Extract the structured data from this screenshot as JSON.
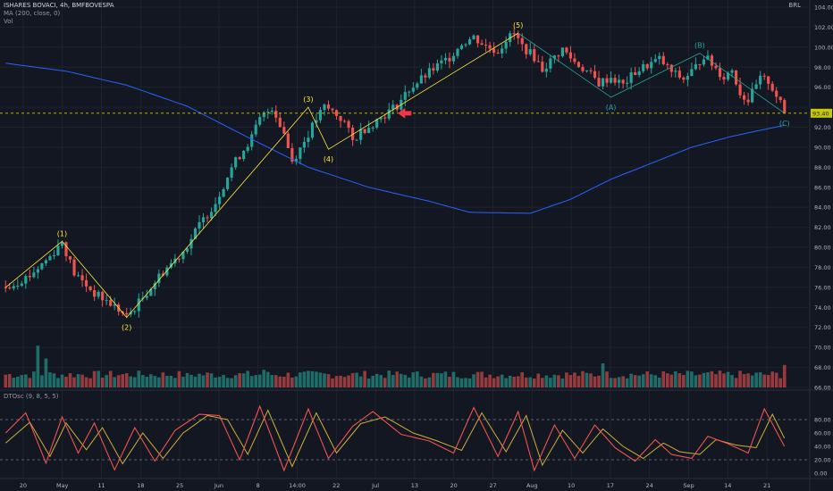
{
  "header": {
    "symbol_line": "ISHARES BOVACI, 4h, BMFBOVESPA",
    "ma_line": "MA (200, close, 0)",
    "vol_line": "Vol",
    "osc_line": "DTOsc (9, 8, 5, 5)",
    "currency": "BRL"
  },
  "colors": {
    "background": "#131722",
    "grid": "#1e222d",
    "up": "#26a69a",
    "down": "#ef5350",
    "ma": "#2962ff",
    "wave": "#ffeb3b",
    "corrective": "#26a69a",
    "osc_fast": "#ef5350",
    "osc_slow": "#c9b03a",
    "arrow": "#f23645",
    "price_line": "#c8c800"
  },
  "chart_data": {
    "type": "candlestick",
    "title": "ISHARES BOVACI, 4h, BMFBOVESPA",
    "currency": "BRL",
    "current_price": 93.4,
    "price_axis": {
      "ylim": [
        66,
        104
      ],
      "ticks": [
        "66.00",
        "68.00",
        "70.00",
        "72.00",
        "74.00",
        "76.00",
        "78.00",
        "80.00",
        "82.00",
        "84.00",
        "86.00",
        "88.00",
        "90.00",
        "92.00",
        "94.00",
        "96.00",
        "98.00",
        "100.00",
        "102.00",
        "104.00"
      ]
    },
    "x_ticks": [
      "20",
      "May",
      "11",
      "18",
      "25",
      "Jun",
      "8",
      "14:00",
      "22",
      "Jul",
      "13",
      "20",
      "27",
      "Aug",
      "10",
      "17",
      "24",
      "Sep",
      "14",
      "21"
    ],
    "price_path": [
      [
        0,
        76.0
      ],
      [
        6,
        77.2
      ],
      [
        11,
        79.1
      ],
      [
        14,
        80.6
      ],
      [
        17,
        77.4
      ],
      [
        22,
        75.4
      ],
      [
        27,
        74.1
      ],
      [
        30,
        73.0
      ],
      [
        34,
        75.0
      ],
      [
        39,
        77.6
      ],
      [
        44,
        79.6
      ],
      [
        48,
        82.2
      ],
      [
        52,
        84.5
      ],
      [
        56,
        88.0
      ],
      [
        58,
        89.2
      ],
      [
        61,
        91.0
      ],
      [
        63,
        92.8
      ],
      [
        66,
        94.0
      ],
      [
        67,
        93.2
      ],
      [
        69,
        91.4
      ],
      [
        71,
        88.6
      ],
      [
        74,
        90.6
      ],
      [
        77,
        92.8
      ],
      [
        79,
        94.0
      ],
      [
        81,
        93.6
      ],
      [
        84,
        92.5
      ],
      [
        86,
        90.6
      ],
      [
        88,
        91.6
      ],
      [
        91,
        92.4
      ],
      [
        94,
        93.3
      ],
      [
        97,
        94.2
      ],
      [
        100,
        95.8
      ],
      [
        103,
        96.8
      ],
      [
        106,
        97.8
      ],
      [
        110,
        99.0
      ],
      [
        113,
        100.4
      ],
      [
        116,
        101.0
      ],
      [
        119,
        100.1
      ],
      [
        122,
        99.6
      ],
      [
        124,
        100.8
      ],
      [
        126,
        101.3
      ],
      [
        128,
        100.1
      ],
      [
        131,
        99.0
      ],
      [
        133,
        97.8
      ],
      [
        136,
        99.0
      ],
      [
        138,
        99.8
      ],
      [
        141,
        98.5
      ],
      [
        144,
        97.6
      ],
      [
        147,
        96.4
      ],
      [
        150,
        97.0
      ],
      [
        153,
        96.2
      ],
      [
        156,
        97.5
      ],
      [
        159,
        98.2
      ],
      [
        162,
        98.8
      ],
      [
        165,
        97.5
      ],
      [
        168,
        96.8
      ],
      [
        171,
        98.0
      ],
      [
        173,
        99.2
      ],
      [
        175,
        98.3
      ],
      [
        178,
        97.0
      ],
      [
        180,
        97.8
      ],
      [
        182,
        95.4
      ],
      [
        184,
        94.7
      ],
      [
        187,
        96.8
      ],
      [
        189,
        96.6
      ],
      [
        191,
        95.2
      ],
      [
        193,
        93.4
      ]
    ],
    "ma200": [
      [
        0,
        98.4
      ],
      [
        15,
        97.6
      ],
      [
        30,
        96.2
      ],
      [
        45,
        94.1
      ],
      [
        60,
        91.0
      ],
      [
        75,
        88.0
      ],
      [
        90,
        86.0
      ],
      [
        105,
        84.6
      ],
      [
        115,
        83.5
      ],
      [
        130,
        83.4
      ],
      [
        140,
        84.8
      ],
      [
        150,
        86.8
      ],
      [
        160,
        88.4
      ],
      [
        170,
        90.0
      ],
      [
        180,
        91.1
      ],
      [
        193,
        92.2
      ]
    ],
    "elliott_waves": [
      {
        "label": "(1)",
        "i": 14,
        "price": 80.6
      },
      {
        "label": "(2)",
        "i": 30,
        "price": 73.0
      },
      {
        "label": "(3)",
        "i": 75,
        "price": 94.0
      },
      {
        "label": "(4)",
        "i": 80,
        "price": 89.8
      },
      {
        "label": "(5)",
        "i": 127,
        "price": 101.4
      }
    ],
    "wave_path": [
      [
        0,
        76.0
      ],
      [
        14,
        80.6
      ],
      [
        30,
        73.0
      ],
      [
        75,
        94.0
      ],
      [
        80,
        89.8
      ],
      [
        127,
        101.4
      ]
    ],
    "corrective_waves": [
      {
        "label": "(A)",
        "i": 150,
        "price": 95.0
      },
      {
        "label": "(B)",
        "i": 172,
        "price": 99.4
      },
      {
        "label": "(C)",
        "i": 193,
        "price": 93.4
      }
    ],
    "corrective_path": [
      [
        127,
        101.4
      ],
      [
        150,
        95.0
      ],
      [
        172,
        99.4
      ],
      [
        193,
        93.4
      ]
    ],
    "volume_spikes": [
      [
        8,
        2.6
      ],
      [
        10,
        1.8
      ],
      [
        45,
        0.9
      ],
      [
        64,
        1.1
      ],
      [
        148,
        1.5
      ],
      [
        193,
        1.4
      ]
    ],
    "oscillator": {
      "name": "DTOsc (9, 8, 5, 5)",
      "ylim": [
        0,
        100
      ],
      "ticks": [
        "0.00",
        "20.00",
        "40.00",
        "60.00",
        "80.00"
      ],
      "bands": [
        20,
        80
      ],
      "fast": [
        [
          0,
          60
        ],
        [
          5,
          90
        ],
        [
          10,
          15
        ],
        [
          14,
          84
        ],
        [
          18,
          30
        ],
        [
          22,
          75
        ],
        [
          27,
          5
        ],
        [
          32,
          68
        ],
        [
          37,
          18
        ],
        [
          42,
          64
        ],
        [
          48,
          88
        ],
        [
          53,
          86
        ],
        [
          58,
          20
        ],
        [
          63,
          100
        ],
        [
          69,
          4
        ],
        [
          75,
          96
        ],
        [
          80,
          22
        ],
        [
          86,
          70
        ],
        [
          91,
          92
        ],
        [
          98,
          58
        ],
        [
          105,
          48
        ],
        [
          111,
          30
        ],
        [
          116,
          98
        ],
        [
          122,
          25
        ],
        [
          127,
          92
        ],
        [
          131,
          4
        ],
        [
          136,
          72
        ],
        [
          141,
          22
        ],
        [
          146,
          72
        ],
        [
          151,
          38
        ],
        [
          156,
          18
        ],
        [
          161,
          50
        ],
        [
          165,
          28
        ],
        [
          170,
          22
        ],
        [
          174,
          55
        ],
        [
          179,
          44
        ],
        [
          184,
          30
        ],
        [
          188,
          96
        ],
        [
          193,
          40
        ]
      ],
      "slow": [
        [
          0,
          45
        ],
        [
          6,
          76
        ],
        [
          11,
          25
        ],
        [
          15,
          75
        ],
        [
          20,
          35
        ],
        [
          24,
          68
        ],
        [
          29,
          14
        ],
        [
          34,
          60
        ],
        [
          39,
          22
        ],
        [
          44,
          60
        ],
        [
          50,
          86
        ],
        [
          55,
          80
        ],
        [
          60,
          28
        ],
        [
          65,
          94
        ],
        [
          71,
          10
        ],
        [
          77,
          90
        ],
        [
          82,
          30
        ],
        [
          88,
          74
        ],
        [
          94,
          84
        ],
        [
          101,
          60
        ],
        [
          107,
          48
        ],
        [
          113,
          34
        ],
        [
          118,
          90
        ],
        [
          124,
          32
        ],
        [
          129,
          86
        ],
        [
          133,
          12
        ],
        [
          138,
          64
        ],
        [
          143,
          30
        ],
        [
          148,
          66
        ],
        [
          153,
          40
        ],
        [
          158,
          22
        ],
        [
          163,
          45
        ],
        [
          167,
          32
        ],
        [
          172,
          28
        ],
        [
          176,
          50
        ],
        [
          181,
          42
        ],
        [
          186,
          38
        ],
        [
          190,
          88
        ],
        [
          193,
          52
        ]
      ]
    }
  }
}
